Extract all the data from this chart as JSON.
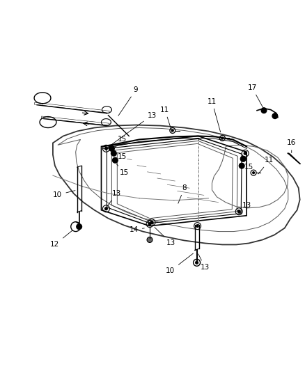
{
  "bg_color": "#ffffff",
  "line_color": "#000000",
  "figsize": [
    4.39,
    5.33
  ],
  "dpi": 100,
  "gray": "#555555",
  "lgray": "#888888"
}
